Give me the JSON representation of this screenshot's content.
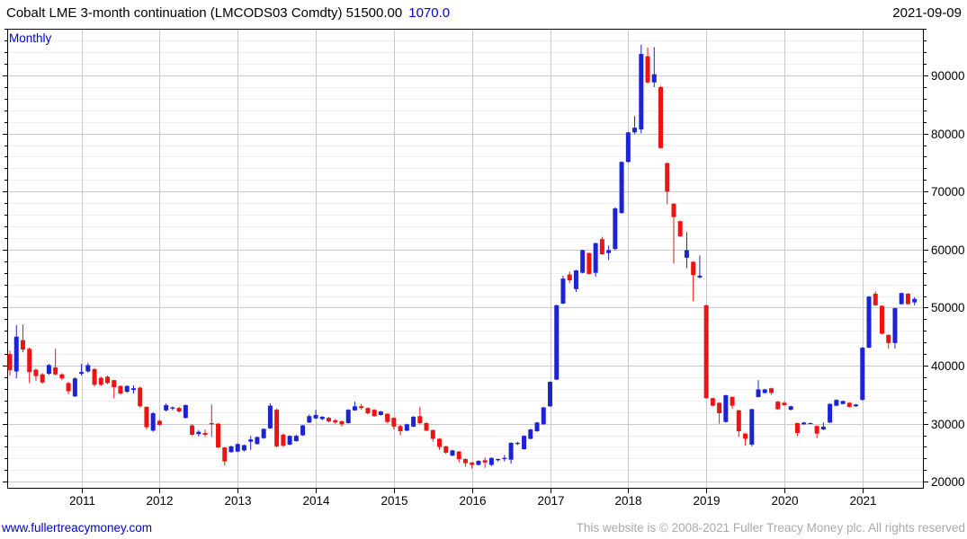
{
  "header": {
    "title": "Cobalt LME 3-month continuation (LMCODS03 Comdty) 51500.00",
    "change": "1070.0",
    "date": "2021-09-09"
  },
  "footer": {
    "website": "www.fullertreacymoney.com",
    "copyright": "This website is © 2008-2021 Fuller Treacy Money plc. All rights reserved"
  },
  "chart_data": {
    "type": "candlestick",
    "title": "Cobalt LME 3-month continuation (LMCODS03 Comdty)",
    "timeframe_label": "Monthly",
    "last_price": 51500.0,
    "change": 1070.0,
    "date": "2021-09-09",
    "start_month": "2010-02",
    "end_month": "2021-09",
    "ylim": [
      18800,
      98050
    ],
    "y_major_ticks": [
      20000,
      30000,
      40000,
      50000,
      60000,
      70000,
      80000,
      90000
    ],
    "y_minor_step": 2000,
    "x_year_ticks": [
      2011,
      2012,
      2013,
      2014,
      2015,
      2016,
      2017,
      2018,
      2019,
      2020,
      2021
    ],
    "grid": "major-and-minor",
    "legend_position": "none",
    "colors": {
      "up": "#1b23d2",
      "down": "#ee1313",
      "grid_major": "#c8c8c8",
      "grid_minor": "#efefef",
      "frame": "#000000",
      "link": "#0000cc",
      "muted": "#a9a9a9",
      "text": "#000000"
    },
    "ohlc": [
      [
        42000,
        42600,
        38300,
        39200
      ],
      [
        39000,
        47000,
        37800,
        45000
      ],
      [
        44400,
        47100,
        42300,
        42800
      ],
      [
        42900,
        43100,
        37000,
        38900
      ],
      [
        39300,
        39500,
        37400,
        38200
      ],
      [
        38500,
        38700,
        36900,
        37100
      ],
      [
        38600,
        40300,
        38400,
        40100
      ],
      [
        39700,
        42900,
        38300,
        38500
      ],
      [
        38500,
        38700,
        37500,
        37800
      ],
      [
        37000,
        37200,
        35100,
        35600
      ],
      [
        34700,
        38000,
        34600,
        37800
      ],
      [
        38600,
        40300,
        38300,
        38900
      ],
      [
        39000,
        40500,
        38800,
        40100
      ],
      [
        39400,
        39600,
        36400,
        36700
      ],
      [
        37900,
        38100,
        36500,
        36700
      ],
      [
        38100,
        38300,
        36800,
        37000
      ],
      [
        37500,
        37600,
        34400,
        36300
      ],
      [
        36500,
        36600,
        35000,
        35200
      ],
      [
        35500,
        36600,
        35300,
        36500
      ],
      [
        35800,
        36600,
        35200,
        36100
      ],
      [
        36200,
        36400,
        32800,
        33000
      ],
      [
        32900,
        33000,
        29000,
        29400
      ],
      [
        28800,
        32000,
        28600,
        31800
      ],
      [
        30500,
        30700,
        29600,
        29800
      ],
      [
        32300,
        33500,
        32100,
        33200
      ],
      [
        32600,
        33000,
        32300,
        32800
      ],
      [
        32700,
        32900,
        31900,
        32100
      ],
      [
        31000,
        33300,
        30900,
        33200
      ],
      [
        29700,
        29900,
        27900,
        28100
      ],
      [
        28200,
        28900,
        27800,
        28600
      ],
      [
        28400,
        29000,
        27700,
        28100
      ],
      [
        30100,
        33300,
        27700,
        29900
      ],
      [
        30000,
        30100,
        25800,
        25900
      ],
      [
        25900,
        26000,
        22800,
        23500
      ],
      [
        25100,
        26200,
        25000,
        26100
      ],
      [
        25200,
        26600,
        25100,
        26500
      ],
      [
        25400,
        26400,
        25200,
        26300
      ],
      [
        26900,
        27900,
        25500,
        27300
      ],
      [
        26500,
        27800,
        26400,
        27700
      ],
      [
        27500,
        29200,
        27400,
        29100
      ],
      [
        29200,
        33500,
        29100,
        33100
      ],
      [
        32400,
        32600,
        25900,
        26100
      ],
      [
        28100,
        28300,
        26000,
        26200
      ],
      [
        26400,
        28000,
        26300,
        27900
      ],
      [
        27000,
        28100,
        26900,
        27900
      ],
      [
        28000,
        29800,
        27900,
        29700
      ],
      [
        30200,
        31600,
        30100,
        31300
      ],
      [
        30900,
        32400,
        30800,
        31500
      ],
      [
        30800,
        31300,
        30600,
        31200
      ],
      [
        31000,
        31200,
        30200,
        30400
      ],
      [
        30600,
        30800,
        30000,
        30200
      ],
      [
        30400,
        30600,
        29500,
        29900
      ],
      [
        30100,
        32500,
        30000,
        32400
      ],
      [
        32300,
        33800,
        32200,
        33000
      ],
      [
        33000,
        33400,
        32400,
        32700
      ],
      [
        32700,
        32800,
        31600,
        31800
      ],
      [
        32400,
        32500,
        31200,
        31300
      ],
      [
        31500,
        32200,
        31400,
        32100
      ],
      [
        31700,
        31800,
        30100,
        30300
      ],
      [
        31000,
        31100,
        29000,
        29500
      ],
      [
        29600,
        29800,
        28000,
        28700
      ],
      [
        28800,
        30000,
        28700,
        29900
      ],
      [
        29500,
        31300,
        29400,
        31200
      ],
      [
        31300,
        32900,
        29900,
        30100
      ],
      [
        30100,
        30300,
        28700,
        28800
      ],
      [
        28900,
        29000,
        26900,
        27400
      ],
      [
        27400,
        27500,
        25500,
        26000
      ],
      [
        26100,
        26200,
        24800,
        25000
      ],
      [
        24500,
        25500,
        24400,
        25400
      ],
      [
        25200,
        25300,
        23300,
        23900
      ],
      [
        23900,
        24000,
        22600,
        23200
      ],
      [
        23300,
        23400,
        22300,
        22900
      ],
      [
        22900,
        23700,
        22800,
        23600
      ],
      [
        23700,
        24200,
        22400,
        23300
      ],
      [
        22900,
        24200,
        22700,
        24100
      ],
      [
        23700,
        24000,
        23500,
        23900
      ],
      [
        23900,
        24600,
        23500,
        24100
      ],
      [
        23800,
        26800,
        23100,
        26700
      ],
      [
        26500,
        26900,
        26300,
        26700
      ],
      [
        25600,
        28000,
        25500,
        27900
      ],
      [
        27400,
        29100,
        27300,
        29000
      ],
      [
        28700,
        30300,
        28600,
        30200
      ],
      [
        29900,
        32900,
        29800,
        32800
      ],
      [
        33000,
        37300,
        32900,
        37200
      ],
      [
        37600,
        50500,
        37500,
        50400
      ],
      [
        50700,
        55500,
        50600,
        55000
      ],
      [
        55700,
        56200,
        54200,
        54700
      ],
      [
        53200,
        56500,
        52700,
        56400
      ],
      [
        56000,
        60000,
        55900,
        59900
      ],
      [
        59400,
        59500,
        55700,
        55800
      ],
      [
        56000,
        61200,
        55300,
        61100
      ],
      [
        61800,
        62200,
        59100,
        59200
      ],
      [
        59400,
        60700,
        58200,
        59900
      ],
      [
        60100,
        67300,
        59900,
        67100
      ],
      [
        66300,
        75200,
        66200,
        75100
      ],
      [
        75100,
        80300,
        75000,
        80200
      ],
      [
        80200,
        83000,
        79900,
        81000
      ],
      [
        80700,
        95300,
        80000,
        93700
      ],
      [
        93300,
        94800,
        88600,
        88800
      ],
      [
        88800,
        94900,
        88000,
        90200
      ],
      [
        88000,
        88200,
        77400,
        77500
      ],
      [
        74900,
        75000,
        67800,
        70000
      ],
      [
        67900,
        68000,
        57600,
        65600
      ],
      [
        64900,
        65000,
        62200,
        62300
      ],
      [
        58600,
        63000,
        56800,
        59900
      ],
      [
        57900,
        58000,
        51100,
        55600
      ],
      [
        55200,
        59000,
        55000,
        55500
      ],
      [
        50400,
        50500,
        34300,
        34400
      ],
      [
        34400,
        34500,
        33000,
        33100
      ],
      [
        33600,
        33700,
        30000,
        31800
      ],
      [
        30300,
        35000,
        30200,
        34900
      ],
      [
        34600,
        34700,
        32600,
        33100
      ],
      [
        32300,
        32400,
        27700,
        28700
      ],
      [
        28300,
        28400,
        26200,
        27400
      ],
      [
        26400,
        32600,
        26100,
        32500
      ],
      [
        34600,
        37500,
        34500,
        35900
      ],
      [
        35300,
        36000,
        35200,
        35900
      ],
      [
        36100,
        36200,
        35000,
        35300
      ],
      [
        33800,
        33900,
        32400,
        32500
      ],
      [
        33600,
        33800,
        33100,
        33200
      ],
      [
        32400,
        33100,
        32300,
        33000
      ],
      [
        30100,
        30200,
        27900,
        28400
      ],
      [
        29900,
        30300,
        29800,
        30200
      ],
      [
        30000,
        30200,
        29900,
        30100
      ],
      [
        29600,
        29700,
        27500,
        28300
      ],
      [
        29000,
        30200,
        28900,
        29500
      ],
      [
        30200,
        33500,
        30100,
        33400
      ],
      [
        33100,
        34200,
        33000,
        34100
      ],
      [
        33400,
        34000,
        33300,
        33900
      ],
      [
        33600,
        33700,
        32800,
        32900
      ],
      [
        33000,
        33400,
        32900,
        33300
      ],
      [
        34100,
        43200,
        34000,
        43100
      ],
      [
        43100,
        52000,
        43000,
        51900
      ],
      [
        52400,
        52800,
        50300,
        50400
      ],
      [
        50300,
        50400,
        45400,
        45500
      ],
      [
        45300,
        45400,
        42900,
        43900
      ],
      [
        43900,
        50000,
        42900,
        49900
      ],
      [
        50600,
        52600,
        50500,
        52500
      ],
      [
        52400,
        52500,
        50500,
        50600
      ],
      [
        50900,
        51800,
        50400,
        51500
      ]
    ]
  }
}
